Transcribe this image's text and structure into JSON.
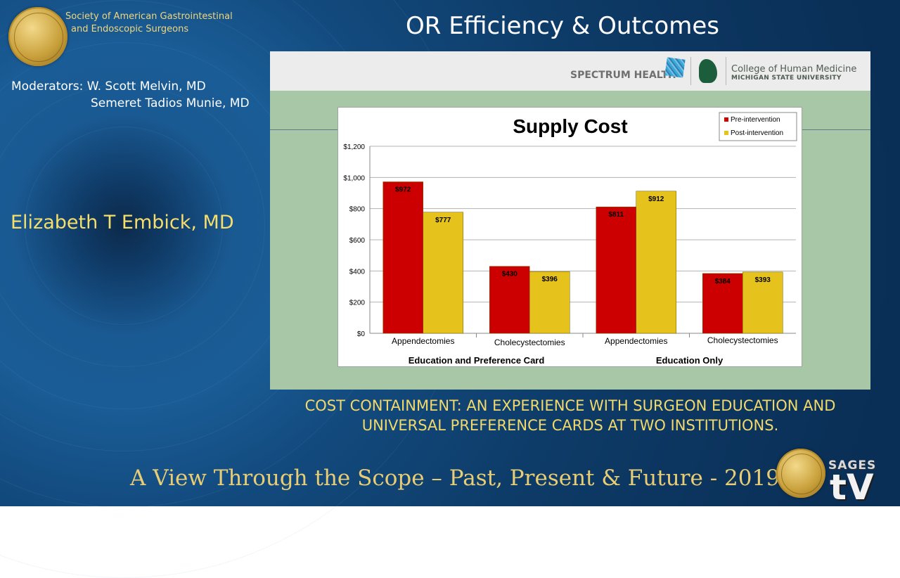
{
  "header": {
    "society_line1": "Society of American Gastrointestinal",
    "society_line2": "and Endoscopic Surgeons",
    "title": "OR Efficiency & Outcomes"
  },
  "moderators": {
    "line1": "Moderators: W. Scott Melvin, MD",
    "line2": "Semeret Tadios Munie, MD"
  },
  "speaker": "Elizabeth T Embick, MD",
  "slide_header": {
    "spectrum": "SPECTRUM HEALTH",
    "college": "College of Human Medicine",
    "university": "MICHIGAN STATE UNIVERSITY"
  },
  "citation": {
    "line1": "COST CONTAINMENT: AN EXPERIENCE WITH SURGEON EDUCATION AND",
    "line2": "UNIVERSAL PREFERENCE CARDS AT TWO INSTITUTIONS."
  },
  "footer": {
    "tagline": "A View Through the Scope – Past, Present & Future - 2019",
    "sages": "SAGES",
    "tv": "tV"
  },
  "chart_data": {
    "type": "bar",
    "title": "Supply Cost",
    "categories": [
      "Appendectomies",
      "Cholecystectomies",
      "Appendectomies",
      "Cholecystectomies"
    ],
    "groups": [
      "Education and Preference Card",
      "Education Only"
    ],
    "series": [
      {
        "name": "Pre-intervention",
        "color": "#cc0000",
        "values": [
          972,
          430,
          811,
          384
        ],
        "labels": [
          "$972",
          "$430",
          "$811",
          "$384"
        ]
      },
      {
        "name": "Post-intervention",
        "color": "#e6c21c",
        "values": [
          777,
          396,
          912,
          393
        ],
        "labels": [
          "$777",
          "$396",
          "$912",
          "$393"
        ]
      }
    ],
    "ylim": [
      0,
      1200
    ],
    "yticks": [
      0,
      200,
      400,
      600,
      800,
      1000,
      1200
    ],
    "ytick_labels": [
      "$0",
      "$200",
      "$400",
      "$600",
      "$800",
      "$1,000",
      "$1,200"
    ],
    "grid": true,
    "legend": "top-right"
  }
}
